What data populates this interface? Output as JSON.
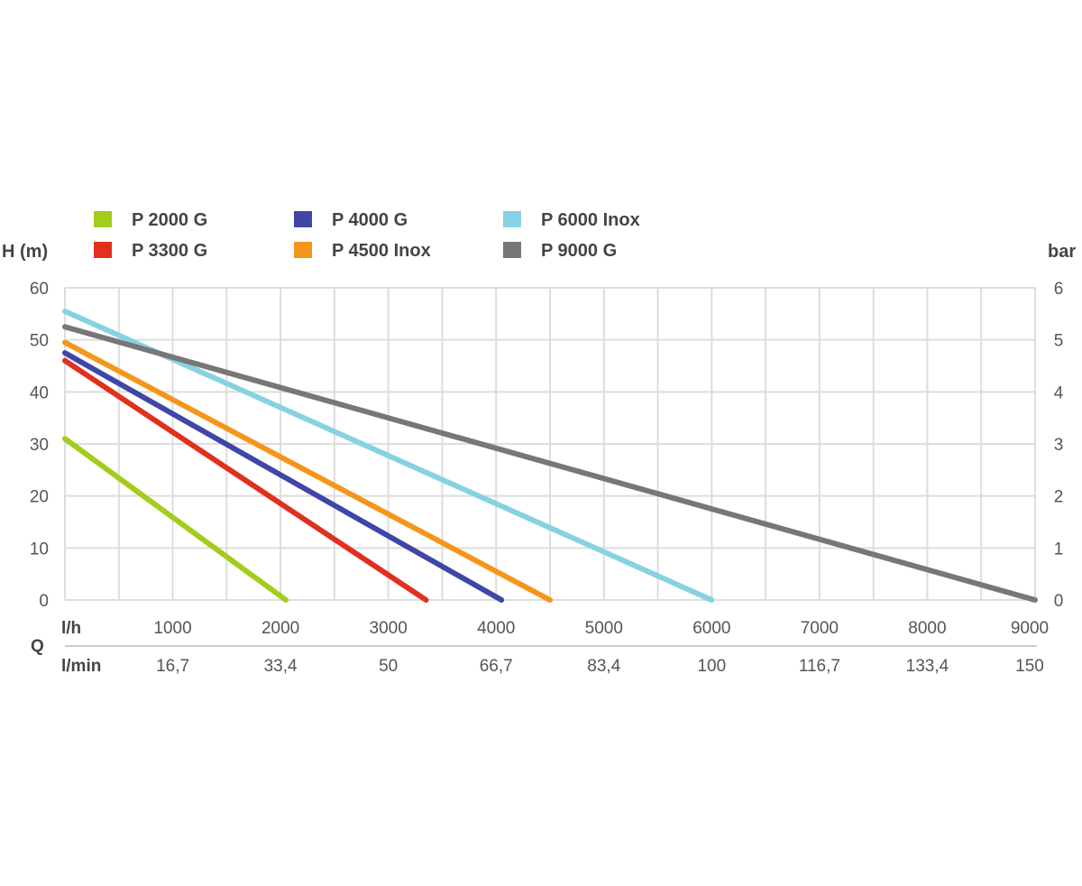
{
  "chart_data": {
    "type": "line",
    "title": "",
    "ylabel": "H (m)",
    "ylabel_right": "bar",
    "xlabel": "Q",
    "x_unit_top": "l/h",
    "x_unit_bottom": "l/min",
    "xlim": [
      0,
      9000
    ],
    "ylim": [
      0,
      60
    ],
    "ylim_right": [
      0,
      6
    ],
    "x_ticks": [
      "1000",
      "2000",
      "3000",
      "4000",
      "5000",
      "6000",
      "7000",
      "8000",
      "9000"
    ],
    "x_tick_values": [
      1000,
      2000,
      3000,
      4000,
      5000,
      6000,
      7000,
      8000,
      9000
    ],
    "x_ticks_bottom": [
      "16,7",
      "33,4",
      "50",
      "66,7",
      "83,4",
      "100",
      "116,7",
      "133,4",
      "150"
    ],
    "y_ticks": [
      "0",
      "10",
      "20",
      "30",
      "40",
      "50",
      "60"
    ],
    "y_tick_values": [
      0,
      10,
      20,
      30,
      40,
      50,
      60
    ],
    "y_ticks_right": [
      "0",
      "1",
      "2",
      "3",
      "4",
      "5",
      "6"
    ],
    "grid": true,
    "legend_position": "top",
    "series": [
      {
        "name": "P 2000 G",
        "color": "#a4cc1b",
        "x": [
          0,
          2050
        ],
        "y": [
          31,
          0
        ]
      },
      {
        "name": "P 3300 G",
        "color": "#e0301e",
        "x": [
          0,
          3350
        ],
        "y": [
          46,
          0
        ]
      },
      {
        "name": "P 4000 G",
        "color": "#4046a8",
        "x": [
          0,
          4050
        ],
        "y": [
          47.5,
          0
        ]
      },
      {
        "name": "P 4500 Inox",
        "color": "#f4961c",
        "x": [
          0,
          4500
        ],
        "y": [
          49.5,
          0
        ]
      },
      {
        "name": "P 6000 Inox",
        "color": "#86d2e2",
        "x": [
          0,
          6000
        ],
        "y": [
          55.5,
          0
        ]
      },
      {
        "name": "P 9000 G",
        "color": "#777777",
        "x": [
          0,
          9000
        ],
        "y": [
          52.5,
          0
        ]
      }
    ]
  }
}
